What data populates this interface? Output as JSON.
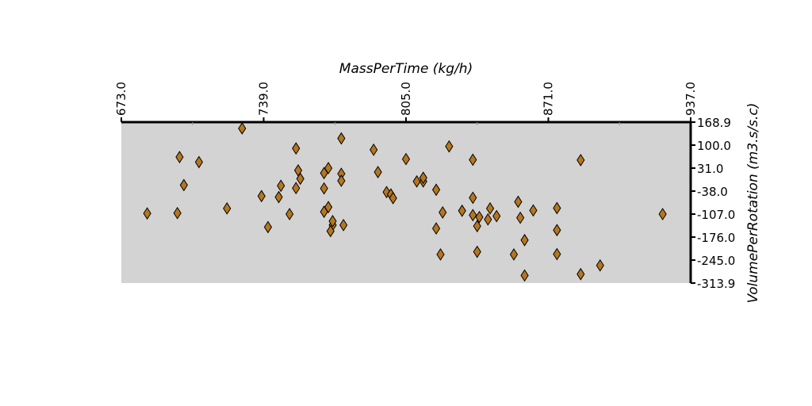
{
  "chart_data": {
    "type": "scatter",
    "xlabel": "MassPerTime (kg/h)",
    "ylabel": "VolumePerRotation (m3.s/s.c)",
    "xlim": [
      673.0,
      937.0
    ],
    "ylim": [
      -313.9,
      168.9
    ],
    "x_ticks": [
      "673.0",
      "739.0",
      "805.0",
      "871.0",
      "937.0"
    ],
    "y_ticks": [
      "168.9",
      "100.0",
      "31.0",
      "-38.0",
      "-107.0",
      "-176.0",
      "-245.0",
      "-313.9"
    ],
    "x_axis_position": "top",
    "y_axis_position": "right",
    "grid": false,
    "background_color": "#d3d3d3",
    "marker": "diamond",
    "marker_color": "#b5761f",
    "marker_edge_color": "#000000",
    "points": [
      {
        "x": 685,
        "y": -105
      },
      {
        "x": 699,
        "y": -104
      },
      {
        "x": 700,
        "y": 64
      },
      {
        "x": 702,
        "y": -20
      },
      {
        "x": 709,
        "y": 49
      },
      {
        "x": 722,
        "y": -90
      },
      {
        "x": 729,
        "y": 150
      },
      {
        "x": 738,
        "y": -53
      },
      {
        "x": 741,
        "y": -146
      },
      {
        "x": 746,
        "y": -56
      },
      {
        "x": 747,
        "y": -22
      },
      {
        "x": 751,
        "y": -107
      },
      {
        "x": 754,
        "y": -29
      },
      {
        "x": 754,
        "y": 90
      },
      {
        "x": 755,
        "y": 24
      },
      {
        "x": 756,
        "y": -1
      },
      {
        "x": 767,
        "y": -100
      },
      {
        "x": 767,
        "y": 16
      },
      {
        "x": 767,
        "y": -30
      },
      {
        "x": 769,
        "y": 31
      },
      {
        "x": 769,
        "y": -86
      },
      {
        "x": 771,
        "y": -140
      },
      {
        "x": 771,
        "y": -128
      },
      {
        "x": 770,
        "y": -158
      },
      {
        "x": 775,
        "y": 14
      },
      {
        "x": 775,
        "y": -7
      },
      {
        "x": 775,
        "y": 120
      },
      {
        "x": 776,
        "y": -140
      },
      {
        "x": 790,
        "y": 86
      },
      {
        "x": 792,
        "y": 19
      },
      {
        "x": 796,
        "y": -41
      },
      {
        "x": 798,
        "y": -48
      },
      {
        "x": 799,
        "y": -59
      },
      {
        "x": 805,
        "y": 58
      },
      {
        "x": 810,
        "y": -9
      },
      {
        "x": 813,
        "y": -9
      },
      {
        "x": 813,
        "y": 2
      },
      {
        "x": 819,
        "y": -34
      },
      {
        "x": 819,
        "y": -150
      },
      {
        "x": 821,
        "y": -228
      },
      {
        "x": 822,
        "y": -102
      },
      {
        "x": 825,
        "y": 96
      },
      {
        "x": 831,
        "y": -97
      },
      {
        "x": 836,
        "y": 56
      },
      {
        "x": 836,
        "y": -58
      },
      {
        "x": 836,
        "y": -110
      },
      {
        "x": 838,
        "y": -220
      },
      {
        "x": 838,
        "y": -143
      },
      {
        "x": 839,
        "y": -116
      },
      {
        "x": 843,
        "y": -123
      },
      {
        "x": 844,
        "y": -90
      },
      {
        "x": 847,
        "y": -113
      },
      {
        "x": 855,
        "y": -228
      },
      {
        "x": 857,
        "y": -70
      },
      {
        "x": 858,
        "y": -118
      },
      {
        "x": 860,
        "y": -185
      },
      {
        "x": 860,
        "y": -291
      },
      {
        "x": 864,
        "y": -96
      },
      {
        "x": 875,
        "y": -89
      },
      {
        "x": 875,
        "y": -155
      },
      {
        "x": 875,
        "y": -227
      },
      {
        "x": 886,
        "y": 55
      },
      {
        "x": 886,
        "y": -287
      },
      {
        "x": 895,
        "y": -261
      },
      {
        "x": 924,
        "y": -107
      }
    ]
  }
}
